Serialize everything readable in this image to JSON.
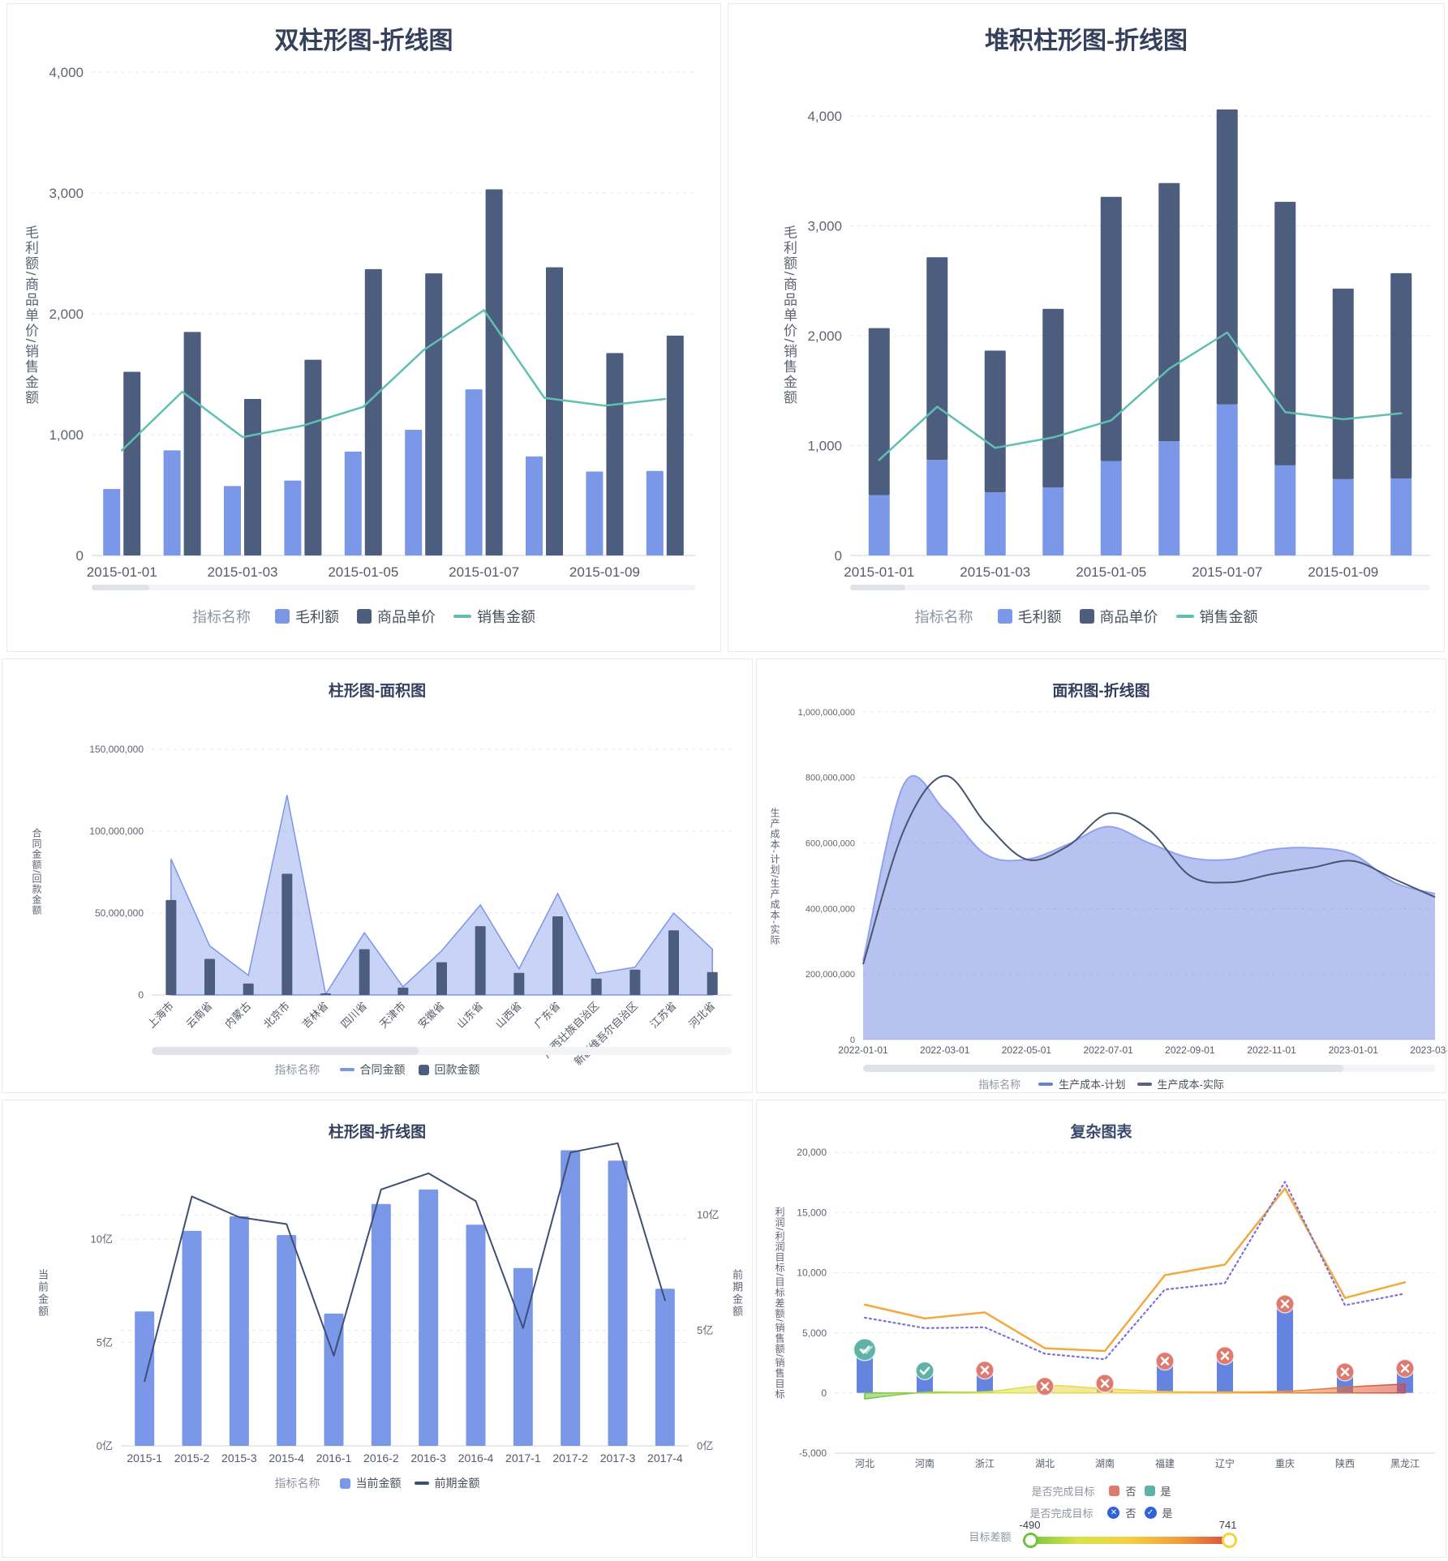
{
  "page": {
    "background": "#ffffff",
    "grid_color": "#e4e6ed",
    "axis_line_color": "#cfd3dc",
    "tick_label_color": "#5f6470",
    "title_color": "#35405d",
    "legend_text_color": "#4a4f5c"
  },
  "chart_data": [
    {
      "type": "bar",
      "subtype": "grouped-bar-with-line",
      "title": "双柱形图-折线图",
      "y_name": "毛利额/商品单价/销售金额",
      "legend_title": "指标名称",
      "categories": [
        "2015-01-01",
        "2015-01-02",
        "2015-01-03",
        "2015-01-04",
        "2015-01-05",
        "2015-01-06",
        "2015-01-07",
        "2015-01-08",
        "2015-01-09",
        "2015-01-10"
      ],
      "x_label_every": 2,
      "ylim": [
        0,
        4000
      ],
      "y_ticks": [
        {
          "v": 0,
          "label": "0"
        },
        {
          "v": 1000,
          "label": "1,000"
        },
        {
          "v": 2000,
          "label": "2,000"
        },
        {
          "v": 3000,
          "label": "3,000"
        },
        {
          "v": 4000,
          "label": "4,000"
        }
      ],
      "grid": "dashed",
      "legend_position": "bottom",
      "series": [
        {
          "name": "毛利额",
          "type": "bar",
          "color": "#7b97e8",
          "values": [
            550,
            870,
            575,
            620,
            860,
            1040,
            1375,
            820,
            695,
            700
          ]
        },
        {
          "name": "商品单价",
          "type": "bar",
          "color": "#4c5d7e",
          "values": [
            1520,
            1850,
            1295,
            1620,
            2370,
            2335,
            3030,
            2385,
            1675,
            1820
          ]
        },
        {
          "name": "销售金额",
          "type": "line",
          "color": "#5fc0b1",
          "values": [
            870,
            1355,
            980,
            1075,
            1230,
            1700,
            2030,
            1305,
            1240,
            1295
          ]
        }
      ],
      "scrollbar": {
        "thumb": 0.095
      }
    },
    {
      "type": "bar",
      "subtype": "stacked-bar-with-line",
      "stacked": true,
      "title": "堆积柱形图-折线图",
      "y_name": "毛利额/商品单价/销售金额",
      "legend_title": "指标名称",
      "categories": [
        "2015-01-01",
        "2015-01-02",
        "2015-01-03",
        "2015-01-04",
        "2015-01-05",
        "2015-01-06",
        "2015-01-07",
        "2015-01-08",
        "2015-01-09",
        "2015-01-10"
      ],
      "x_label_every": 2,
      "ylim": [
        0,
        4400
      ],
      "y_ticks": [
        {
          "v": 0,
          "label": "0"
        },
        {
          "v": 1000,
          "label": "1,000"
        },
        {
          "v": 2000,
          "label": "2,000"
        },
        {
          "v": 3000,
          "label": "3,000"
        },
        {
          "v": 4000,
          "label": "4,000"
        }
      ],
      "grid": "dashed",
      "legend_position": "bottom",
      "series": [
        {
          "name": "毛利额",
          "type": "bar",
          "color": "#7b97e8",
          "values": [
            550,
            870,
            575,
            620,
            860,
            1040,
            1375,
            820,
            695,
            700
          ]
        },
        {
          "name": "商品单价",
          "type": "bar",
          "color": "#4c5d7e",
          "values": [
            1520,
            1845,
            1290,
            1625,
            2405,
            2350,
            2685,
            2400,
            1735,
            1870
          ]
        },
        {
          "name": "销售金额",
          "type": "line",
          "color": "#5fc0b1",
          "values": [
            870,
            1355,
            980,
            1075,
            1230,
            1700,
            2030,
            1305,
            1240,
            1295
          ]
        }
      ],
      "scrollbar": {
        "thumb": 0.095
      }
    },
    {
      "type": "area",
      "subtype": "bar-with-area",
      "title": "柱形图-面积图",
      "y_name": "合同金额/回款金额",
      "legend_title": "指标名称",
      "categories": [
        "上海市",
        "云南省",
        "内蒙古",
        "北京市",
        "吉林省",
        "四川省",
        "天津市",
        "安徽省",
        "山东省",
        "山西省",
        "广东省",
        "广西壮族自治区",
        "新疆维吾尔自治区",
        "江苏省",
        "河北省"
      ],
      "rotate_x_labels": 45,
      "ylim": [
        0,
        150000000
      ],
      "y_ticks": [
        {
          "v": 0,
          "label": "0"
        },
        {
          "v": 50000000,
          "label": "50,000,000"
        },
        {
          "v": 100000000,
          "label": "100,000,000"
        },
        {
          "v": 150000000,
          "label": "150,000,000"
        }
      ],
      "grid": "dashed",
      "legend_position": "bottom",
      "series": [
        {
          "name": "合同金额",
          "type": "area",
          "color": "#7b96e8",
          "fill_opacity": 0.42,
          "values": [
            83000000,
            30000000,
            12000000,
            122000000,
            500000,
            38000000,
            5000000,
            27000000,
            55000000,
            16000000,
            62000000,
            13000000,
            17000000,
            50000000,
            28000000
          ]
        },
        {
          "name": "回款金额",
          "type": "bar",
          "color": "#4c5d7e",
          "values": [
            58000000,
            22000000,
            7000000,
            74000000,
            1000000,
            28000000,
            4500000,
            20000000,
            42000000,
            13500000,
            48000000,
            10000000,
            15500000,
            39500000,
            14000000
          ]
        }
      ],
      "scrollbar": {
        "thumb": 0.46
      }
    },
    {
      "type": "area",
      "subtype": "area-with-line",
      "smooth": true,
      "title": "面积图-折线图",
      "y_name": "生产成本-计划/生产成本-实际",
      "legend_title": "指标名称",
      "categories": [
        "2022-01-01",
        "2022-02-01",
        "2022-03-01",
        "2022-04-01",
        "2022-05-01",
        "2022-06-01",
        "2022-07-01",
        "2022-08-01",
        "2022-09-01",
        "2022-10-01",
        "2022-11-01",
        "2022-12-01",
        "2023-01-01",
        "2023-02-01",
        "2023-03-01"
      ],
      "x_label_every": 2,
      "ylim": [
        0,
        1000000000
      ],
      "y_ticks": [
        {
          "v": 0,
          "label": "0"
        },
        {
          "v": 200000000,
          "label": "200,000,000"
        },
        {
          "v": 400000000,
          "label": "400,000,000"
        },
        {
          "v": 600000000,
          "label": "600,000,000"
        },
        {
          "v": 800000000,
          "label": "800,000,000"
        },
        {
          "v": 1000000000,
          "label": "1,000,000,000"
        }
      ],
      "grid": "dashed",
      "legend_position": "bottom",
      "series": [
        {
          "name": "生产成本-计划",
          "type": "area",
          "color": "#7b90e4",
          "fill_opacity": 0.55,
          "values": [
            240000000,
            780000000,
            700000000,
            565000000,
            550000000,
            595000000,
            650000000,
            600000000,
            555000000,
            550000000,
            580000000,
            585000000,
            565000000,
            480000000,
            445000000
          ]
        },
        {
          "name": "生产成本-实际",
          "type": "line",
          "color": "#47566f",
          "values": [
            230000000,
            640000000,
            805000000,
            660000000,
            550000000,
            590000000,
            690000000,
            640000000,
            500000000,
            480000000,
            505000000,
            525000000,
            545000000,
            490000000,
            435000000
          ]
        }
      ],
      "scrollbar": {
        "thumb": 0.84
      }
    },
    {
      "type": "bar",
      "subtype": "bar-with-line-dual-axis",
      "title": "柱形图-折线图",
      "y_name_left": "当前金额",
      "y_name_right": "前期金额",
      "legend_title": "指标名称",
      "categories": [
        "2015-1",
        "2015-2",
        "2015-3",
        "2015-4",
        "2016-1",
        "2016-2",
        "2016-3",
        "2016-4",
        "2017-1",
        "2017-2",
        "2017-3",
        "2017-4"
      ],
      "y_left": {
        "max": 14.75,
        "ticks": [
          {
            "v": 0,
            "label": "0亿"
          },
          {
            "v": 5,
            "label": "5亿"
          },
          {
            "v": 10,
            "label": "10亿"
          }
        ]
      },
      "y_right": {
        "max": 13.2,
        "ticks": [
          {
            "v": 0,
            "label": "0亿"
          },
          {
            "v": 5,
            "label": "5亿"
          },
          {
            "v": 10,
            "label": "10亿"
          }
        ]
      },
      "grid": "dashed",
      "legend_position": "bottom",
      "series": [
        {
          "name": "当前金额",
          "type": "bar",
          "axis": "left",
          "color": "#7b97e8",
          "values": [
            6.5,
            10.4,
            11.1,
            10.2,
            6.4,
            11.7,
            12.4,
            10.7,
            8.6,
            14.3,
            13.8,
            7.6
          ]
        },
        {
          "name": "前期金额",
          "type": "line",
          "axis": "right",
          "color": "#3f4f74",
          "values": [
            2.8,
            10.8,
            9.9,
            9.6,
            3.9,
            11.1,
            11.8,
            10.6,
            5.1,
            12.7,
            13.1,
            6.3
          ]
        }
      ]
    },
    {
      "type": "bar",
      "subtype": "complex-combo",
      "title": "复杂图表",
      "y_name": "利润/利润目标/目标差额/销售额/销售目标",
      "categories": [
        "河北",
        "河南",
        "浙江",
        "湖北",
        "湖南",
        "福建",
        "辽宁",
        "重庆",
        "陕西",
        "黑龙江"
      ],
      "ylim": [
        -5000,
        20000
      ],
      "y_ticks": [
        {
          "v": -5000,
          "label": "-5,000"
        },
        {
          "v": 0,
          "label": "0"
        },
        {
          "v": 5000,
          "label": "5,000"
        },
        {
          "v": 10000,
          "label": "10,000"
        },
        {
          "v": 15000,
          "label": "15,000"
        },
        {
          "v": 20000,
          "label": "20,000"
        }
      ],
      "grid": "dashed",
      "series": [
        {
          "name": "利润",
          "type": "bar",
          "color": "#6484e0",
          "values": [
            3600,
            1850,
            1900,
            550,
            800,
            2650,
            3100,
            7400,
            1750,
            2050
          ]
        },
        {
          "name": "销售额",
          "type": "line",
          "color": "#f2a93d",
          "values": [
            7340,
            6190,
            6700,
            3720,
            3490,
            9790,
            10670,
            17000,
            7900,
            9200
          ]
        },
        {
          "name": "销售目标",
          "type": "dotted-line",
          "color": "#7c71d9",
          "values": [
            6260,
            5390,
            5460,
            3260,
            2800,
            8600,
            9130,
            17550,
            7290,
            8260
          ]
        },
        {
          "name": "目标差额",
          "type": "area-gradient",
          "colors": [
            "#6fc33f",
            "#d9e24a",
            "#f3cf44",
            "#ef9a3a",
            "#d5483f"
          ],
          "values": [
            -490,
            60,
            100,
            620,
            350,
            120,
            90,
            140,
            480,
            741
          ]
        }
      ],
      "status_markers": {
        "name": "是否完成目标",
        "yes_color": "#5fb3a6",
        "no_color": "#df7a6e",
        "values": [
          "yes-double",
          "yes",
          "no",
          "no",
          "no",
          "no",
          "no",
          "no",
          "no",
          "no"
        ]
      },
      "legend_rows": [
        {
          "title": "是否完成目标",
          "items": [
            {
              "label": "否",
              "marker": "square",
              "color": "#df7a6e"
            },
            {
              "label": "是",
              "marker": "square",
              "color": "#5fb3a6"
            }
          ]
        },
        {
          "title": "是否完成目标",
          "items": [
            {
              "label": "否",
              "marker": "circle-x",
              "color": "#2f63d8"
            },
            {
              "label": "是",
              "marker": "circle-check",
              "color": "#2f63d8"
            }
          ]
        },
        {
          "title": "目标差额",
          "type": "gradient",
          "min_label": "-490",
          "max_label": "741",
          "colors": [
            "#6fc33f",
            "#d9e24a",
            "#f3cf44",
            "#ef9a3a",
            "#d5483f"
          ]
        }
      ]
    }
  ]
}
